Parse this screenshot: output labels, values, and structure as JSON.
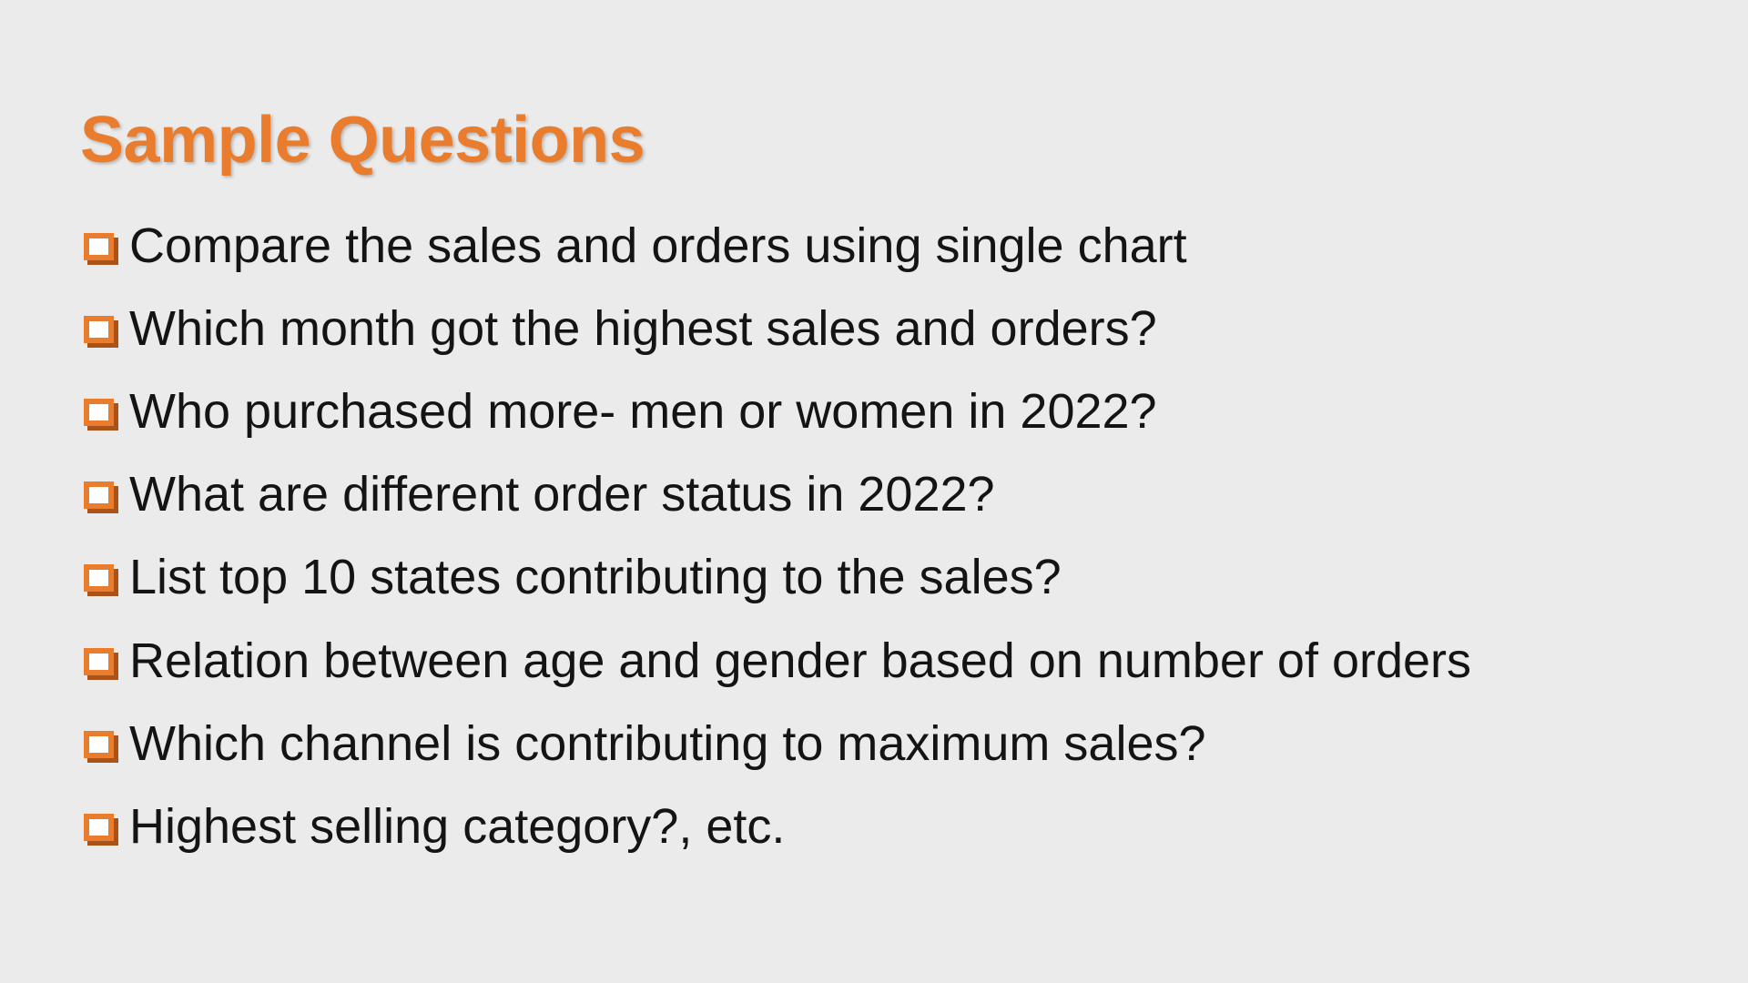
{
  "slide": {
    "title": "Sample Questions",
    "bullet_icon": "checkbox-square-icon",
    "accent_color": "#ea7d2d",
    "text_color": "#141414",
    "background_color": "#ebebeb",
    "items": [
      {
        "text": "Compare the sales and orders using single chart"
      },
      {
        "text": "Which month got the highest sales and orders?"
      },
      {
        "text": "Who purchased more- men or women in 2022?"
      },
      {
        "text": "What are different order status in 2022?"
      },
      {
        "text": "List top 10 states contributing to the sales?"
      },
      {
        "text": "Relation between age and gender based on number of orders"
      },
      {
        "text": "Which channel is contributing to maximum sales?"
      },
      {
        "text": "Highest selling category?, etc."
      }
    ]
  }
}
